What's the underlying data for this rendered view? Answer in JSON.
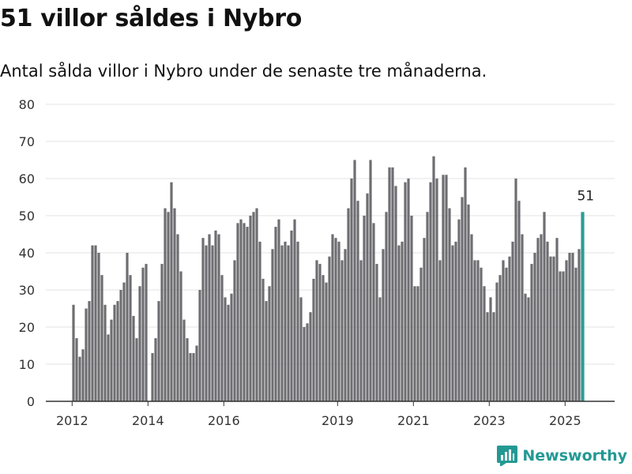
{
  "title": "51 villor såldes i Nybro",
  "subtitle": "Antal sålda villor i Nybro under de senaste tre månaderna.",
  "brand": "Newsworthy",
  "colors": {
    "bar": "#6e6d72",
    "highlight": "#2a9d96",
    "grid": "#e3e3e3",
    "axis": "#333333"
  },
  "chart_data": {
    "type": "bar",
    "title": "51 villor såldes i Nybro",
    "subtitle": "Antal sålda villor i Nybro under de senaste tre månaderna.",
    "xlabel": "",
    "ylabel": "",
    "ylim": [
      0,
      80
    ],
    "yticks": [
      0,
      10,
      20,
      30,
      40,
      50,
      60,
      70,
      80
    ],
    "xticks": [
      {
        "label": "2012",
        "month": "2012-01"
      },
      {
        "label": "2014",
        "month": "2014-01"
      },
      {
        "label": "2016",
        "month": "2016-01"
      },
      {
        "label": "2019",
        "month": "2019-01"
      },
      {
        "label": "2021",
        "month": "2021-01"
      },
      {
        "label": "2023",
        "month": "2023-01"
      },
      {
        "label": "2025",
        "month": "2025-01"
      }
    ],
    "grid": true,
    "first_month": "2012-01",
    "last_month": "2025-07",
    "values": [
      26,
      17,
      12,
      14,
      25,
      27,
      42,
      42,
      40,
      34,
      26,
      18,
      22,
      26,
      27,
      30,
      32,
      40,
      34,
      23,
      17,
      31,
      36,
      37,
      0,
      13,
      17,
      27,
      37,
      52,
      51,
      59,
      52,
      45,
      35,
      22,
      17,
      13,
      13,
      15,
      30,
      44,
      42,
      45,
      42,
      46,
      45,
      34,
      28,
      26,
      29,
      38,
      48,
      49,
      48,
      47,
      50,
      51,
      52,
      43,
      33,
      27,
      31,
      41,
      47,
      49,
      42,
      43,
      42,
      46,
      49,
      43,
      28,
      20,
      21,
      24,
      33,
      38,
      37,
      34,
      32,
      39,
      45,
      44,
      43,
      38,
      41,
      52,
      60,
      65,
      54,
      38,
      50,
      56,
      65,
      48,
      37,
      28,
      41,
      51,
      63,
      63,
      58,
      42,
      43,
      59,
      60,
      50,
      31,
      31,
      36,
      44,
      51,
      59,
      66,
      60,
      38,
      61,
      61,
      52,
      42,
      43,
      49,
      55,
      63,
      53,
      45,
      38,
      38,
      36,
      31,
      24,
      28,
      24,
      32,
      34,
      38,
      36,
      39,
      43,
      60,
      54,
      45,
      29,
      28,
      37,
      40,
      44,
      45,
      51,
      43,
      39,
      39,
      44,
      35,
      35,
      38,
      40,
      40,
      36,
      41,
      51
    ],
    "highlight": {
      "month": "2025-07",
      "value": 51,
      "label": "51"
    }
  }
}
